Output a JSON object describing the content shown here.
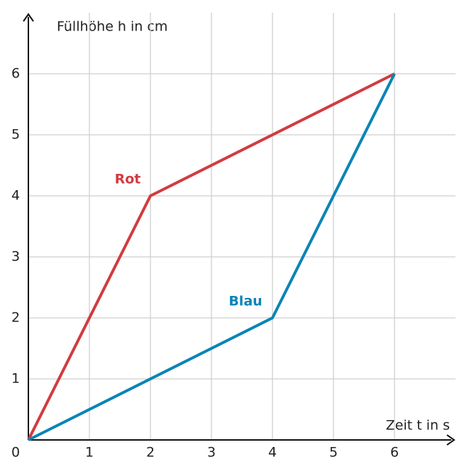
{
  "chart_data": {
    "type": "line",
    "y_label": "Füllhöhe h in cm",
    "x_label": "Zeit t in s",
    "xlim": [
      0,
      7
    ],
    "ylim": [
      0,
      7
    ],
    "xticks": [
      0,
      1,
      2,
      3,
      4,
      5,
      6
    ],
    "yticks": [
      1,
      2,
      3,
      4,
      5,
      6
    ],
    "grid": true,
    "series": [
      {
        "name": "Rot",
        "color": "#d23b3f",
        "x": [
          0,
          2,
          6
        ],
        "values": [
          0,
          4,
          6
        ]
      },
      {
        "name": "Blau",
        "color": "#0b84b6",
        "x": [
          0,
          4,
          6
        ],
        "values": [
          0,
          2,
          6
        ]
      }
    ]
  }
}
